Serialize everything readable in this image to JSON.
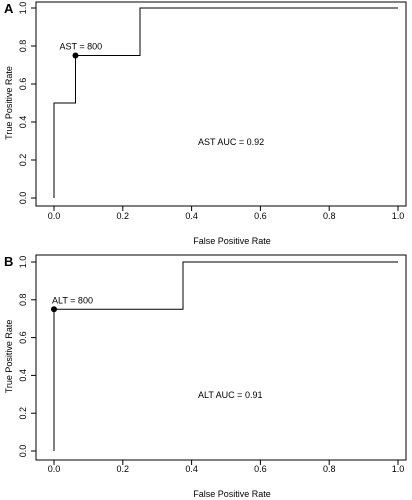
{
  "chart_data": [
    {
      "panel_label": "A",
      "type": "line",
      "xlabel": "False Positive Rate",
      "ylabel": "True Positive Rate",
      "xlim": [
        0,
        1
      ],
      "ylim": [
        0,
        1
      ],
      "xticks": [
        "0.0",
        "0.2",
        "0.4",
        "0.6",
        "0.8",
        "1.0"
      ],
      "yticks": [
        "0.0",
        "0.2",
        "0.4",
        "0.6",
        "0.8",
        "1.0"
      ],
      "series": [
        {
          "x": [
            0,
            0,
            0.0625,
            0.0625,
            0.25,
            0.25,
            1
          ],
          "y": [
            0,
            0.5,
            0.5,
            0.75,
            0.75,
            1,
            1
          ]
        }
      ],
      "cutoff_point": {
        "x": 0.0625,
        "y": 0.75,
        "label": "AST = 800"
      },
      "annotation": "AST AUC = 0.92"
    },
    {
      "panel_label": "B",
      "type": "line",
      "xlabel": "False Positive Rate",
      "ylabel": "True Positive Rate",
      "xlim": [
        0,
        1
      ],
      "ylim": [
        0,
        1
      ],
      "xticks": [
        "0.0",
        "0.2",
        "0.4",
        "0.6",
        "0.8",
        "1.0"
      ],
      "yticks": [
        "0.0",
        "0.2",
        "0.4",
        "0.6",
        "0.8",
        "1.0"
      ],
      "series": [
        {
          "x": [
            0,
            0,
            0.375,
            0.375,
            1
          ],
          "y": [
            0,
            0.75,
            0.75,
            1,
            1
          ]
        }
      ],
      "cutoff_point": {
        "x": 0,
        "y": 0.75,
        "label": "ALT = 800"
      },
      "annotation": "ALT AUC = 0.91"
    }
  ]
}
